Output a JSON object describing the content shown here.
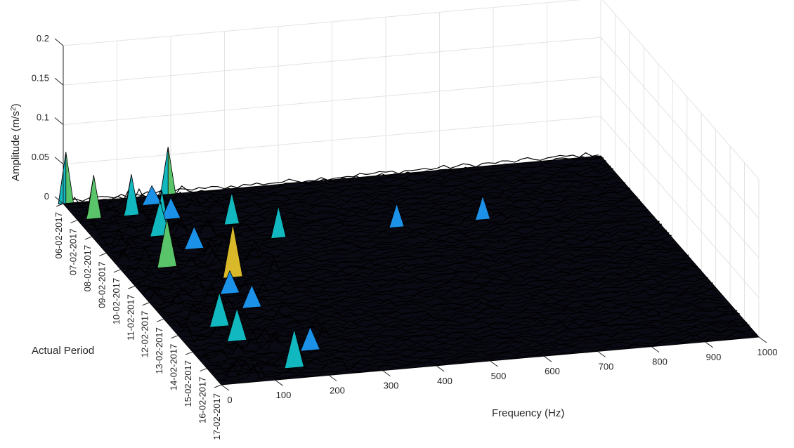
{
  "chart_data": {
    "type": "surface",
    "zlabel": "Amplitude (m/s",
    "zlabel_sup": "2",
    "zlabel_tail": ")",
    "xlabel": "Frequency (Hz)",
    "ylabel": "Actual Period",
    "x_ticks": [
      "0",
      "100",
      "200",
      "300",
      "400",
      "500",
      "600",
      "700",
      "800",
      "900",
      "1000"
    ],
    "y_ticks": [
      "06-02-2017",
      "07-02-2017",
      "08-02-2017",
      "09-02-2017",
      "10-02-2017",
      "11-02-2017",
      "12-02-2017",
      "13-02-2017",
      "14-02-2017",
      "15-02-2017",
      "16-02-2017",
      "17-02-2017"
    ],
    "z_ticks": [
      "0",
      "0.05",
      "0.1",
      "0.15",
      "0.2"
    ],
    "xlim": [
      0,
      1000
    ],
    "zlim": [
      0,
      0.2
    ],
    "colormap": [
      "#3e26a8",
      "#3a5ce0",
      "#1b91e8",
      "#12b8c0",
      "#5ac46a",
      "#d9b92a",
      "#f9fb15"
    ],
    "mesh_color": "#000000",
    "grid": true,
    "peaks": [
      {
        "x": 5,
        "period": "06-02-2017",
        "z": 0.065
      },
      {
        "x": 195,
        "period": "06-02-2017",
        "z": 0.06
      },
      {
        "x": 30,
        "period": "07-02-2017",
        "z": 0.055
      },
      {
        "x": 100,
        "period": "07-02-2017",
        "z": 0.052
      },
      {
        "x": 130,
        "period": "08-02-2017",
        "z": 0.05
      },
      {
        "x": 260,
        "period": "08-02-2017",
        "z": 0.04
      },
      {
        "x": 320,
        "period": "09-02-2017",
        "z": 0.04
      },
      {
        "x": 540,
        "period": "09-02-2017",
        "z": 0.03
      },
      {
        "x": 700,
        "period": "09-02-2017",
        "z": 0.03
      }
    ]
  }
}
